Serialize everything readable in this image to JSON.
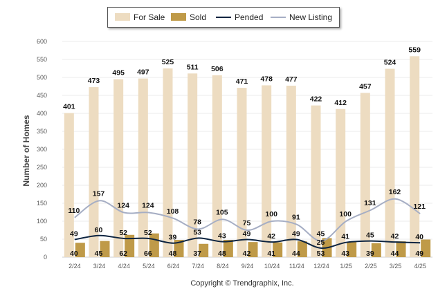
{
  "chart_data": {
    "type": "bar",
    "categories": [
      "2/24",
      "3/24",
      "4/24",
      "5/24",
      "6/24",
      "7/24",
      "8/24",
      "9/24",
      "10/24",
      "11/24",
      "12/24",
      "1/25",
      "2/25",
      "3/25",
      "4/25"
    ],
    "series": [
      {
        "name": "For Sale",
        "type": "bar",
        "color": "#eddcc1",
        "values": [
          401,
          473,
          495,
          497,
          525,
          511,
          506,
          471,
          478,
          477,
          422,
          412,
          457,
          524,
          559
        ]
      },
      {
        "name": "Sold",
        "type": "bar",
        "color": "#bf9a48",
        "values": [
          40,
          45,
          62,
          66,
          48,
          37,
          48,
          42,
          41,
          44,
          53,
          43,
          39,
          44,
          49
        ]
      },
      {
        "name": "Pended",
        "type": "line",
        "color": "#0d2440",
        "values": [
          49,
          60,
          52,
          52,
          39,
          53,
          43,
          49,
          42,
          49,
          25,
          41,
          45,
          42,
          40
        ]
      },
      {
        "name": "New Listing",
        "type": "line",
        "color": "#a6aec4",
        "values": [
          110,
          157,
          124,
          124,
          108,
          78,
          105,
          75,
          100,
          91,
          45,
          100,
          131,
          162,
          121
        ]
      }
    ],
    "ylabel": "Number of Homes",
    "ylim": [
      0,
      600
    ],
    "yticks": [
      0,
      50,
      100,
      150,
      200,
      250,
      300,
      350,
      400,
      450,
      500,
      550,
      600
    ],
    "grid": true,
    "legend_position": "top-center",
    "copyright": "Copyright © Trendgraphix, Inc."
  }
}
